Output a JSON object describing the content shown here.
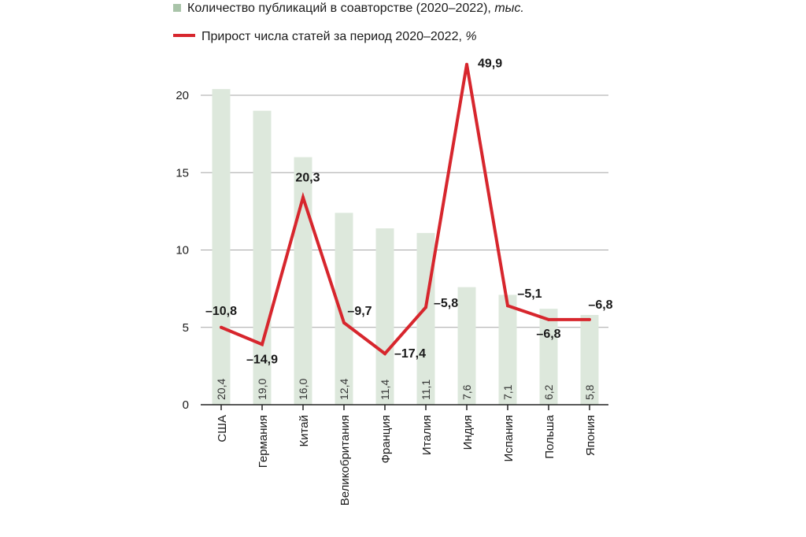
{
  "legend": {
    "bar_label": "Количество публикаций в соавторстве (2020–2022),",
    "bar_unit": "тыс.",
    "line_label": "Прирост числа статей за период 2020–2022,",
    "line_unit": "%"
  },
  "colors": {
    "bar": "#dde8dc",
    "bar_swatch": "#a9c4a9",
    "line": "#d7262d",
    "grid": "#a6a6a6",
    "axis": "#222222"
  },
  "chart_data": {
    "type": "bar",
    "title": "",
    "xlabel": "",
    "ylabel": "",
    "ylim": [
      0,
      20
    ],
    "yticks": [
      0,
      5,
      10,
      15,
      20
    ],
    "grid": true,
    "legend_position": "top-left",
    "categories": [
      "США",
      "Германия",
      "Китай",
      "Великобритания",
      "Франция",
      "Италия",
      "Индия",
      "Испания",
      "Польша",
      "Япония"
    ],
    "series": [
      {
        "name": "Количество публикаций в соавторстве (2020–2022), тыс.",
        "type": "bar",
        "values": [
          20.4,
          19.0,
          16.0,
          12.4,
          11.4,
          11.1,
          7.6,
          7.1,
          6.2,
          5.8
        ],
        "value_labels": [
          "20,4",
          "19,0",
          "16,0",
          "12,4",
          "11,4",
          "11,1",
          "7,6",
          "7,1",
          "6,2",
          "5,8"
        ]
      },
      {
        "name": "Прирост числа статей за период 2020–2022, %",
        "type": "line",
        "values": [
          -10.8,
          -14.9,
          20.3,
          -9.7,
          -17.4,
          -5.8,
          49.9,
          -5.1,
          -6.8,
          -6.8
        ],
        "value_labels": [
          "–10,8",
          "–14,9",
          "20,3",
          "–9,7",
          "–17,4",
          "–5,8",
          "49,9",
          "–5,1",
          "–6,8",
          "–6,8"
        ],
        "plotted_on_left_axis": [
          5.0,
          3.9,
          13.4,
          5.3,
          3.3,
          6.3,
          22.0,
          6.4,
          5.5,
          5.5
        ]
      }
    ]
  }
}
